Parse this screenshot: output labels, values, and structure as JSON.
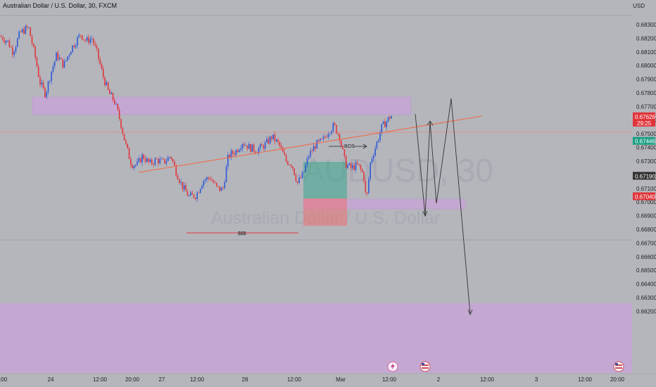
{
  "chart_data": {
    "type": "candlestick",
    "title": "Australian Dollar / U.S. Dollar, 30, FXCM",
    "symbol": "Australian Dollar / U.S. Dollar",
    "interval": "30",
    "source": "FXCM",
    "unit": "USD",
    "watermark_symbol": "AUDUSD, 30",
    "watermark_name": "Australian Dollar / U.S. Dollar",
    "y_range": [
      0.6615,
      0.6841
    ],
    "y_ticks": [
      "0.68300",
      "0.68200",
      "0.68100",
      "0.68000",
      "0.67900",
      "0.67800",
      "0.67700",
      "0.67600",
      "0.67500",
      "0.67400",
      "0.67300",
      "0.67200",
      "0.67100",
      "0.67000",
      "0.66900",
      "0.66800",
      "0.66700",
      "0.66600",
      "0.66500",
      "0.66400",
      "0.66300",
      "0.66200"
    ],
    "x_ticks": [
      {
        "label": "12:00",
        "pos": 0.3
      },
      {
        "label": "24",
        "pos": 72
      },
      {
        "label": "12:00",
        "pos": 142
      },
      {
        "label": "20:00",
        "pos": 188
      },
      {
        "label": "27",
        "pos": 230
      },
      {
        "label": "12:00",
        "pos": 280
      },
      {
        "label": "28",
        "pos": 348
      },
      {
        "label": "12:00",
        "pos": 418
      },
      {
        "label": "Mar",
        "pos": 484
      },
      {
        "label": "12:00",
        "pos": 553
      },
      {
        "label": "2",
        "pos": 623
      },
      {
        "label": "12:00",
        "pos": 692
      },
      {
        "label": "3",
        "pos": 762
      },
      {
        "label": "12:00",
        "pos": 831
      },
      {
        "label": "20:00",
        "pos": 877
      }
    ],
    "price_badges": [
      {
        "price": "0.67626",
        "sub": "29:25",
        "value": 0.67626,
        "color": "#e0353b"
      },
      {
        "price": "0.67446",
        "value": 0.67446,
        "color": "#1d9e84"
      },
      {
        "price": "0.67190",
        "value": 0.6719,
        "color": "#2f2f2f"
      },
      {
        "price": "0.67040",
        "value": 0.6704,
        "color": "#e0353b"
      }
    ],
    "annotations": {
      "bos": "BOS",
      "liquidity": "$$$"
    },
    "colors": {
      "up": "#2b56d6",
      "down": "#e0353b",
      "zone": "#c7a6d6",
      "trendline": "#f06b4a",
      "long_tp": "#3aa58c",
      "long_sl": "#ee6f73"
    }
  },
  "events": [
    "lightning-icon",
    "us-flag-icon",
    "us-flag-icon"
  ]
}
